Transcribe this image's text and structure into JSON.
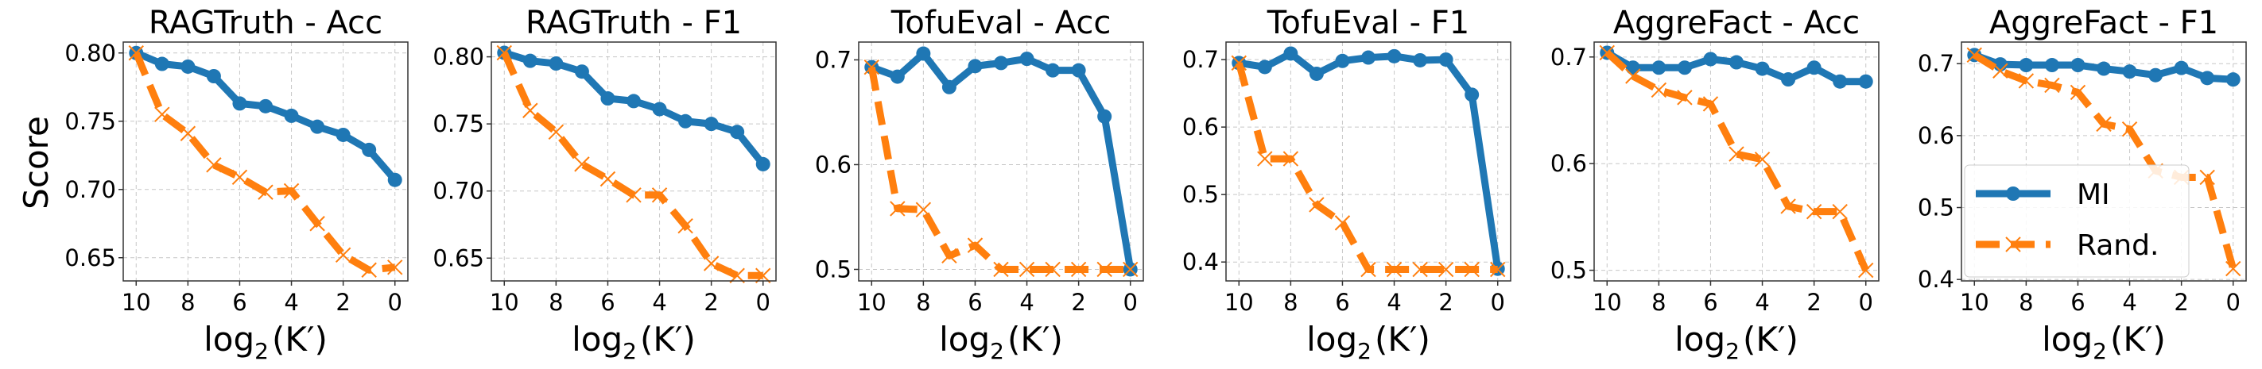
{
  "chart_data": [
    {
      "type": "line",
      "title": "RAGTruth - Acc",
      "ylabel": "Score",
      "ylim": [
        0.633,
        0.808
      ],
      "yticks": [
        0.65,
        0.7,
        0.75,
        0.8
      ],
      "ytick_labels": [
        "0.65",
        "0.70",
        "0.75",
        "0.80"
      ],
      "x": [
        10,
        9,
        8,
        7,
        6,
        5,
        4,
        3,
        2,
        1,
        0
      ],
      "series": [
        {
          "name": "MI",
          "values": [
            0.8,
            0.792,
            0.79,
            0.783,
            0.763,
            0.761,
            0.754,
            0.746,
            0.74,
            0.729,
            0.707
          ]
        },
        {
          "name": "Rand.",
          "values": [
            0.8,
            0.755,
            0.741,
            0.718,
            0.709,
            0.698,
            0.699,
            0.675,
            0.652,
            0.641,
            0.643
          ]
        }
      ]
    },
    {
      "type": "line",
      "title": "RAGTruth - F1",
      "ylabel": "",
      "ylim": [
        0.633,
        0.811
      ],
      "yticks": [
        0.65,
        0.7,
        0.75,
        0.8
      ],
      "ytick_labels": [
        "0.65",
        "0.70",
        "0.75",
        "0.80"
      ],
      "x": [
        10,
        9,
        8,
        7,
        6,
        5,
        4,
        3,
        2,
        1,
        0
      ],
      "series": [
        {
          "name": "MI",
          "values": [
            0.803,
            0.797,
            0.795,
            0.789,
            0.769,
            0.767,
            0.761,
            0.752,
            0.75,
            0.744,
            0.72
          ]
        },
        {
          "name": "Rand.",
          "values": [
            0.803,
            0.76,
            0.744,
            0.72,
            0.709,
            0.697,
            0.697,
            0.674,
            0.646,
            0.637,
            0.637
          ]
        }
      ]
    },
    {
      "type": "line",
      "title": "TofuEval - Acc",
      "ylabel": "",
      "ylim": [
        0.489,
        0.717
      ],
      "yticks": [
        0.5,
        0.6,
        0.7
      ],
      "ytick_labels": [
        "0.5",
        "0.6",
        "0.7"
      ],
      "x": [
        10,
        9,
        8,
        7,
        6,
        5,
        4,
        3,
        2,
        1,
        0
      ],
      "series": [
        {
          "name": "MI",
          "values": [
            0.693,
            0.684,
            0.706,
            0.674,
            0.694,
            0.697,
            0.701,
            0.69,
            0.69,
            0.646,
            0.5
          ]
        },
        {
          "name": "Rand.",
          "values": [
            0.693,
            0.558,
            0.557,
            0.513,
            0.523,
            0.5,
            0.5,
            0.5,
            0.5,
            0.5,
            0.5
          ]
        }
      ]
    },
    {
      "type": "line",
      "title": "TofuEval - F1",
      "ylabel": "",
      "ylim": [
        0.372,
        0.726
      ],
      "yticks": [
        0.4,
        0.5,
        0.6,
        0.7
      ],
      "ytick_labels": [
        "0.4",
        "0.5",
        "0.6",
        "0.7"
      ],
      "x": [
        10,
        9,
        8,
        7,
        6,
        5,
        4,
        3,
        2,
        1,
        0
      ],
      "series": [
        {
          "name": "MI",
          "values": [
            0.695,
            0.689,
            0.709,
            0.679,
            0.698,
            0.703,
            0.705,
            0.699,
            0.7,
            0.648,
            0.39
          ]
        },
        {
          "name": "Rand.",
          "values": [
            0.695,
            0.553,
            0.553,
            0.485,
            0.458,
            0.389,
            0.389,
            0.389,
            0.389,
            0.389,
            0.389
          ]
        }
      ]
    },
    {
      "type": "line",
      "title": "AggreFact - Acc",
      "ylabel": "",
      "ylim": [
        0.49,
        0.714
      ],
      "yticks": [
        0.5,
        0.6,
        0.7
      ],
      "ytick_labels": [
        "0.5",
        "0.6",
        "0.7"
      ],
      "x": [
        10,
        9,
        8,
        7,
        6,
        5,
        4,
        3,
        2,
        1,
        0
      ],
      "series": [
        {
          "name": "MI",
          "values": [
            0.704,
            0.69,
            0.69,
            0.69,
            0.698,
            0.695,
            0.689,
            0.679,
            0.69,
            0.677,
            0.677
          ]
        },
        {
          "name": "Rand.",
          "values": [
            0.704,
            0.682,
            0.669,
            0.662,
            0.656,
            0.609,
            0.604,
            0.56,
            0.555,
            0.555,
            0.5
          ]
        }
      ]
    },
    {
      "type": "line",
      "title": "AggreFact - F1",
      "ylabel": "",
      "ylim": [
        0.398,
        0.73
      ],
      "yticks": [
        0.4,
        0.5,
        0.6,
        0.7
      ],
      "ytick_labels": [
        "0.4",
        "0.5",
        "0.6",
        "0.7"
      ],
      "x": [
        10,
        9,
        8,
        7,
        6,
        5,
        4,
        3,
        2,
        1,
        0
      ],
      "series": [
        {
          "name": "MI",
          "values": [
            0.712,
            0.699,
            0.698,
            0.698,
            0.698,
            0.693,
            0.689,
            0.684,
            0.694,
            0.68,
            0.678
          ]
        },
        {
          "name": "Rand.",
          "values": [
            0.712,
            0.69,
            0.676,
            0.67,
            0.66,
            0.616,
            0.609,
            0.551,
            0.542,
            0.542,
            0.415
          ]
        }
      ],
      "legend": "lower-left"
    }
  ],
  "shared": {
    "xticks": [
      10,
      8,
      6,
      4,
      2,
      0
    ],
    "xtick_labels": [
      "10",
      "8",
      "6",
      "4",
      "2",
      "0"
    ],
    "xlim": [
      10.5,
      -0.5
    ],
    "xlabel": {
      "base": "log",
      "sub": "2",
      "arg": "(K′)"
    },
    "ylabel": "Score",
    "legend": [
      "MI",
      "Rand."
    ],
    "colors": {
      "MI": "#1f77b4",
      "Rand.": "#ff7f0e"
    },
    "grid": true
  }
}
